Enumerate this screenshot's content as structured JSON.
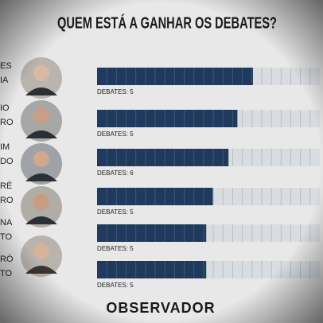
{
  "chart_data": {
    "type": "segmented-bar",
    "title": "QUEM ESTÁ A GANHAR OS DEBATES?",
    "categories": [
      [
        "ES",
        "IA"
      ],
      [
        "IO",
        "RO"
      ],
      [
        "IM",
        "DO"
      ],
      [
        "RÉ",
        "RO"
      ],
      [
        "NA",
        "TO"
      ],
      [
        "RÓ",
        "TO"
      ]
    ],
    "values": [
      70,
      63,
      59,
      52,
      49,
      49
    ],
    "notes": [
      "DEBATES: 5",
      "DEBATES: 5",
      "DEBATES: 6",
      "DEBATES: 5",
      "DEBATES: 5",
      "DEBATES: 5"
    ],
    "xlim": [
      0,
      100
    ],
    "color": "#1f3a5c",
    "empty_color": "#d9dde1",
    "footer": "OBSERVADOR"
  }
}
